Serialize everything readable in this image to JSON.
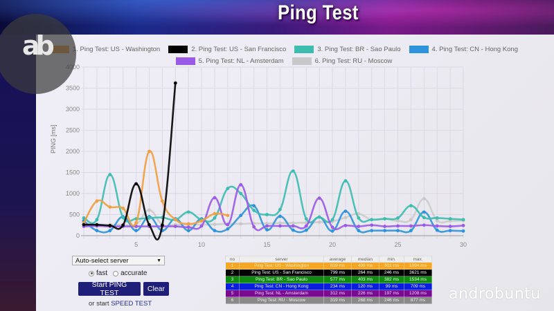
{
  "header": {
    "title": "Ping Test"
  },
  "legend": [
    {
      "label": "1. Ping Test: US - Washington",
      "color": "#f0a040"
    },
    {
      "label": "2. Ping Test: US - San Francisco",
      "color": "#000000"
    },
    {
      "label": "3. Ping Test: BR - Sao Paulo",
      "color": "#3dbdb0"
    },
    {
      "label": "4. Ping Test: CN - Hong Kong",
      "color": "#2e93dc"
    },
    {
      "label": "5. Ping Test: NL - Amsterdam",
      "color": "#9a5ae8"
    },
    {
      "label": "6. Ping Test: RU - Moscow",
      "color": "#c8c8c8"
    }
  ],
  "chart_data": {
    "type": "line",
    "title": "",
    "xlabel": "",
    "ylabel": "PING [ms]",
    "xlim": [
      1,
      30
    ],
    "ylim": [
      0,
      4000
    ],
    "grid": true,
    "legend_position": "top",
    "x_ticks": [
      5,
      10,
      15,
      20,
      25,
      30
    ],
    "y_ticks": [
      0,
      500,
      1000,
      1500,
      2000,
      2500,
      3000,
      3500,
      4000
    ],
    "series": [
      {
        "name": "1. Ping Test: US - Washington",
        "color": "#f0a040",
        "x": [
          1,
          2,
          3,
          4,
          5,
          6,
          7,
          8,
          9,
          10,
          11,
          12
        ],
        "y": [
          300,
          820,
          680,
          650,
          310,
          2000,
          820,
          380,
          280,
          350,
          520,
          480
        ]
      },
      {
        "name": "2. Ping Test: US - San Francisco",
        "color": "#000000",
        "x": [
          1,
          2,
          3,
          4,
          5,
          6,
          7,
          8
        ],
        "y": [
          260,
          260,
          240,
          250,
          1230,
          260,
          250,
          3621
        ]
      },
      {
        "name": "3. Ping Test: BR - Sao Paulo",
        "color": "#3dbdb0",
        "x": [
          1,
          2,
          3,
          4,
          5,
          6,
          7,
          8,
          9,
          10,
          11,
          12,
          13,
          14,
          15,
          16,
          17,
          18,
          19,
          20,
          21,
          22,
          23,
          24,
          25,
          26,
          27,
          28,
          29,
          30
        ],
        "y": [
          420,
          380,
          1450,
          430,
          400,
          420,
          430,
          380,
          560,
          380,
          420,
          1120,
          1000,
          600,
          500,
          620,
          1534,
          400,
          440,
          380,
          1300,
          420,
          380,
          400,
          420,
          710,
          430,
          420,
          400,
          380
        ]
      },
      {
        "name": "4. Ping Test: CN - Hong Kong",
        "color": "#2e93dc",
        "x": [
          1,
          2,
          3,
          4,
          5,
          6,
          7,
          8,
          9,
          10,
          11,
          12,
          13,
          14,
          15,
          16,
          17,
          18,
          19,
          20,
          21,
          22,
          23,
          24,
          25,
          26,
          27,
          28,
          29,
          30
        ],
        "y": [
          350,
          120,
          120,
          450,
          120,
          450,
          120,
          400,
          120,
          400,
          120,
          160,
          480,
          709,
          140,
          460,
          130,
          130,
          440,
          110,
          580,
          120,
          120,
          120,
          120,
          120,
          560,
          130,
          120,
          110
        ]
      },
      {
        "name": "5. Ping Test: NL - Amsterdam",
        "color": "#9a5ae8",
        "x": [
          1,
          2,
          3,
          4,
          5,
          6,
          7,
          8,
          9,
          10,
          11,
          12,
          13,
          14,
          15,
          16,
          17,
          18,
          19,
          20,
          21,
          22,
          23,
          24,
          25,
          26,
          27,
          28,
          29,
          30
        ],
        "y": [
          220,
          230,
          220,
          220,
          220,
          220,
          220,
          220,
          200,
          230,
          900,
          260,
          1208,
          210,
          230,
          230,
          230,
          230,
          890,
          200,
          240,
          220,
          250,
          220,
          230,
          230,
          250,
          230,
          220,
          240
        ]
      },
      {
        "name": "6. Ping Test: RU - Moscow",
        "color": "#c8c8c8",
        "x": [
          1,
          2,
          3,
          4,
          5,
          6,
          7,
          8,
          9,
          10,
          11,
          12,
          13,
          14,
          15,
          16,
          17,
          18,
          19,
          20,
          21,
          22,
          23,
          24,
          25,
          26,
          27,
          28,
          29,
          30
        ],
        "y": [
          250,
          260,
          260,
          260,
          260,
          610,
          260,
          260,
          260,
          260,
          270,
          280,
          280,
          290,
          290,
          300,
          300,
          310,
          320,
          340,
          430,
          520,
          380,
          400,
          350,
          380,
          877,
          360,
          350,
          360
        ]
      }
    ]
  },
  "controls": {
    "server_select": "Auto-select server",
    "radio_fast": "fast",
    "radio_accurate": "accurate",
    "start_button": "Start PING TEST",
    "clear_button": "Clear",
    "speed_prefix": "or start",
    "speed_link": "SPEED TEST"
  },
  "results_table": {
    "headers": [
      "no",
      "server",
      "average",
      "median",
      "min.",
      "max."
    ],
    "rows": [
      {
        "no": "1",
        "server": "Ping Test: US - Washington",
        "average": "639 ms",
        "median": "499 ms",
        "min": "301 ms",
        "max": "1994 ms",
        "bg": "#f5a623",
        "fg": "#fde9c0"
      },
      {
        "no": "2",
        "server": "Ping Test: US - San Francisco",
        "average": "799 ms",
        "median": "264 ms",
        "min": "246 ms",
        "max": "3621 ms",
        "bg": "#000000",
        "fg": "#ffffff"
      },
      {
        "no": "3",
        "server": "Ping Test: BR - Sao Paulo",
        "average": "577 ms",
        "median": "403 ms",
        "min": "382 ms",
        "max": "1534 ms",
        "bg": "#108a10",
        "fg": "#e8ffe8"
      },
      {
        "no": "4",
        "server": "Ping Test: CN - Hong Kong",
        "average": "234 ms",
        "median": "120 ms",
        "min": "99 ms",
        "max": "709 ms",
        "bg": "#0a1ee0",
        "fg": "#e6e8ff"
      },
      {
        "no": "5",
        "server": "Ping Test: NL - Amsterdam",
        "average": "312 ms",
        "median": "226 ms",
        "min": "197 ms",
        "max": "1208 ms",
        "bg": "#7a0a90",
        "fg": "#f4d8ff"
      },
      {
        "no": "6",
        "server": "Ping Test: RU - Moscow",
        "average": "319 ms",
        "median": "268 ms",
        "min": "246 ms",
        "max": "877 ms",
        "bg": "#8a8a8a",
        "fg": "#eeeeee"
      }
    ]
  },
  "watermark": {
    "text": "androbuntu",
    "logo": "ab"
  }
}
